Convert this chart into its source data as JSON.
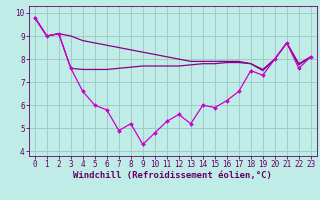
{
  "background_color": "#c0ece8",
  "grid_color": "#a0ccc8",
  "line_color_main": "#cc00cc",
  "line_color_trend": "#880088",
  "xlabel": "Windchill (Refroidissement éolien,°C)",
  "xlabel_fontsize": 6.5,
  "tick_fontsize": 5.5,
  "xlim": [
    -0.5,
    23.5
  ],
  "ylim": [
    3.8,
    10.3
  ],
  "yticks": [
    4,
    5,
    6,
    7,
    8,
    9,
    10
  ],
  "xticks": [
    0,
    1,
    2,
    3,
    4,
    5,
    6,
    7,
    8,
    9,
    10,
    11,
    12,
    13,
    14,
    15,
    16,
    17,
    18,
    19,
    20,
    21,
    22,
    23
  ],
  "series_main_x": [
    0,
    1,
    2,
    3,
    4,
    5,
    6,
    7,
    8,
    9,
    10,
    11,
    12,
    13,
    14,
    15,
    16,
    17,
    18,
    19,
    20,
    21,
    22,
    23
  ],
  "series_main_y": [
    9.8,
    9.0,
    9.1,
    7.6,
    6.6,
    6.0,
    5.8,
    4.9,
    5.2,
    4.3,
    4.8,
    5.3,
    5.6,
    5.2,
    6.0,
    5.9,
    6.2,
    6.6,
    7.5,
    7.3,
    8.0,
    8.7,
    7.6,
    8.1
  ],
  "series_upper_x": [
    0,
    1,
    2,
    3,
    4,
    5,
    6,
    7,
    8,
    9,
    10,
    11,
    12,
    13,
    14,
    15,
    16,
    17,
    18,
    19,
    20,
    21,
    22,
    23
  ],
  "series_upper_y": [
    9.8,
    9.0,
    9.1,
    9.0,
    8.8,
    8.7,
    8.6,
    8.5,
    8.4,
    8.3,
    8.2,
    8.1,
    8.0,
    7.9,
    7.9,
    7.9,
    7.9,
    7.9,
    7.8,
    7.5,
    8.0,
    8.7,
    7.8,
    8.1
  ],
  "series_lower_x": [
    0,
    1,
    2,
    3,
    4,
    5,
    6,
    7,
    8,
    9,
    10,
    11,
    12,
    13,
    14,
    15,
    16,
    17,
    18,
    19,
    20,
    21,
    22,
    23
  ],
  "series_lower_y": [
    9.8,
    9.0,
    9.1,
    7.6,
    7.55,
    7.55,
    7.55,
    7.6,
    7.65,
    7.7,
    7.7,
    7.7,
    7.7,
    7.75,
    7.8,
    7.8,
    7.85,
    7.85,
    7.8,
    7.55,
    8.0,
    8.7,
    7.75,
    8.1
  ]
}
